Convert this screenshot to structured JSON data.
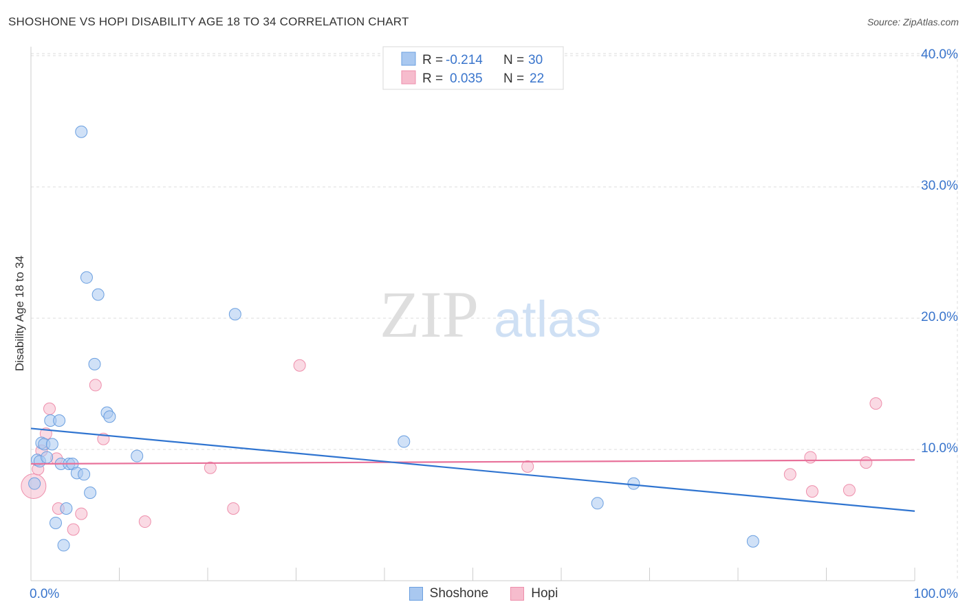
{
  "header": {
    "title": "SHOSHONE VS HOPI DISABILITY AGE 18 TO 34 CORRELATION CHART",
    "source": "Source: ZipAtlas.com"
  },
  "watermark": {
    "zip": "ZIP",
    "atlas": "atlas"
  },
  "colors": {
    "shoshone_fill": "#a9c8f0",
    "shoshone_stroke": "#6a9fe0",
    "shoshone_line": "#2f74d0",
    "hopi_fill": "#f6bccd",
    "hopi_stroke": "#ee8eab",
    "hopi_line": "#e8719a",
    "value_blue": "#3874cc",
    "grid": "#dddddd"
  },
  "stats_legend": {
    "rows": [
      {
        "r_label": "R =",
        "r_value": "-0.214",
        "n_label": "N =",
        "n_value": "30"
      },
      {
        "r_label": "R =",
        "r_value": "0.035",
        "n_label": "N =",
        "n_value": "22"
      }
    ]
  },
  "chart_data": {
    "type": "scatter",
    "title": "SHOSHONE VS HOPI DISABILITY AGE 18 TO 34 CORRELATION CHART",
    "xlabel": "",
    "ylabel": "Disability Age 18 to 34",
    "xlim": [
      0,
      100
    ],
    "ylim": [
      0,
      42
    ],
    "x_tick_labels": [
      "0.0%",
      "100.0%"
    ],
    "y_ticks": [
      10,
      20,
      30,
      40
    ],
    "y_tick_labels": [
      "10.0%",
      "20.0%",
      "30.0%",
      "40.0%"
    ],
    "grid": true,
    "legend_position": "top-center",
    "series": [
      {
        "name": "Shoshone",
        "r": -0.214,
        "n": 30,
        "trend": {
          "x": [
            0,
            100
          ],
          "y": [
            11.6,
            5.3
          ]
        },
        "points": [
          {
            "x": 0.7,
            "y": 9.2
          },
          {
            "x": 1.0,
            "y": 9.1
          },
          {
            "x": 1.2,
            "y": 10.5
          },
          {
            "x": 1.5,
            "y": 10.4
          },
          {
            "x": 1.8,
            "y": 9.4
          },
          {
            "x": 2.2,
            "y": 12.2
          },
          {
            "x": 2.4,
            "y": 10.4
          },
          {
            "x": 2.8,
            "y": 4.4
          },
          {
            "x": 3.2,
            "y": 12.2
          },
          {
            "x": 3.4,
            "y": 8.9
          },
          {
            "x": 3.7,
            "y": 2.7
          },
          {
            "x": 4.0,
            "y": 5.5
          },
          {
            "x": 4.3,
            "y": 8.9
          },
          {
            "x": 4.7,
            "y": 8.9
          },
          {
            "x": 5.2,
            "y": 8.2
          },
          {
            "x": 5.7,
            "y": 34.2
          },
          {
            "x": 6.0,
            "y": 8.1
          },
          {
            "x": 6.3,
            "y": 23.1
          },
          {
            "x": 6.7,
            "y": 6.7
          },
          {
            "x": 7.2,
            "y": 16.5
          },
          {
            "x": 7.6,
            "y": 21.8
          },
          {
            "x": 8.6,
            "y": 12.8
          },
          {
            "x": 8.9,
            "y": 12.5
          },
          {
            "x": 12.0,
            "y": 9.5
          },
          {
            "x": 23.1,
            "y": 20.3
          },
          {
            "x": 42.2,
            "y": 10.6
          },
          {
            "x": 64.1,
            "y": 5.9
          },
          {
            "x": 68.2,
            "y": 7.4
          },
          {
            "x": 81.7,
            "y": 3.0
          },
          {
            "x": 0.4,
            "y": 7.4
          }
        ]
      },
      {
        "name": "Hopi",
        "r": 0.035,
        "n": 22,
        "trend": {
          "x": [
            0,
            100
          ],
          "y": [
            8.9,
            9.2
          ]
        },
        "points": [
          {
            "x": 0.3,
            "y": 7.2,
            "big": true
          },
          {
            "x": 0.8,
            "y": 8.5
          },
          {
            "x": 1.2,
            "y": 9.9
          },
          {
            "x": 1.7,
            "y": 11.2
          },
          {
            "x": 2.1,
            "y": 13.1
          },
          {
            "x": 2.9,
            "y": 9.3
          },
          {
            "x": 3.1,
            "y": 5.5
          },
          {
            "x": 4.8,
            "y": 3.9
          },
          {
            "x": 5.7,
            "y": 5.1
          },
          {
            "x": 7.3,
            "y": 14.9
          },
          {
            "x": 8.2,
            "y": 10.8
          },
          {
            "x": 12.9,
            "y": 4.5
          },
          {
            "x": 20.3,
            "y": 8.6
          },
          {
            "x": 22.9,
            "y": 5.5
          },
          {
            "x": 30.4,
            "y": 16.4
          },
          {
            "x": 56.2,
            "y": 8.7
          },
          {
            "x": 85.9,
            "y": 8.1
          },
          {
            "x": 88.2,
            "y": 9.4
          },
          {
            "x": 88.4,
            "y": 6.8
          },
          {
            "x": 92.6,
            "y": 6.9
          },
          {
            "x": 94.5,
            "y": 9.0
          },
          {
            "x": 95.6,
            "y": 13.5
          }
        ]
      }
    ]
  }
}
